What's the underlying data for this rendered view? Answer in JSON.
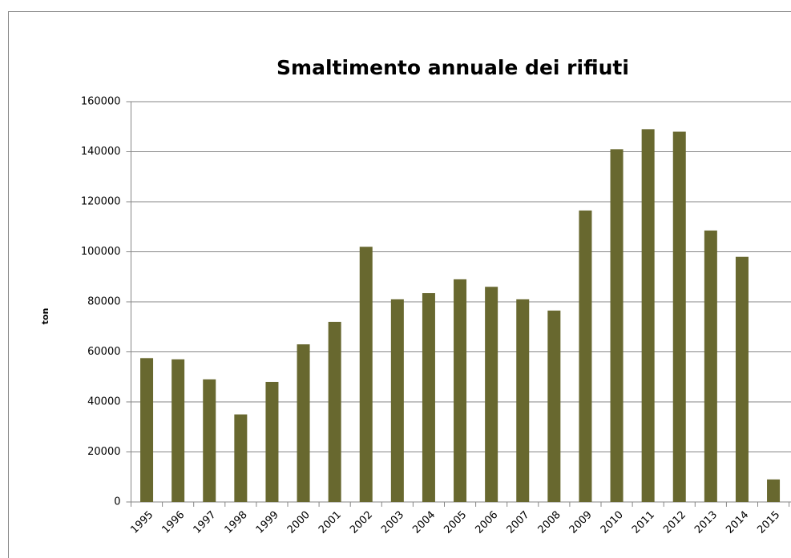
{
  "chart_data": {
    "type": "bar",
    "title": "Smaltimento annuale dei rifiuti",
    "y_label": "ton",
    "categories": [
      "1995",
      "1996",
      "1997",
      "1998",
      "1999",
      "2000",
      "2001",
      "2002",
      "2003",
      "2004",
      "2005",
      "2006",
      "2007",
      "2008",
      "2009",
      "2010",
      "2011",
      "2012",
      "2013",
      "2014",
      "2015"
    ],
    "values": [
      57500,
      57000,
      49000,
      35000,
      48000,
      63000,
      72000,
      102000,
      81000,
      83500,
      89000,
      86000,
      81000,
      76500,
      116500,
      141000,
      149000,
      148000,
      108500,
      98000,
      9000
    ],
    "color": "#68682f",
    "ylim": [
      0,
      160000
    ],
    "yticks": [
      0,
      20000,
      40000,
      60000,
      80000,
      100000,
      120000,
      140000,
      160000
    ],
    "grid": true
  }
}
